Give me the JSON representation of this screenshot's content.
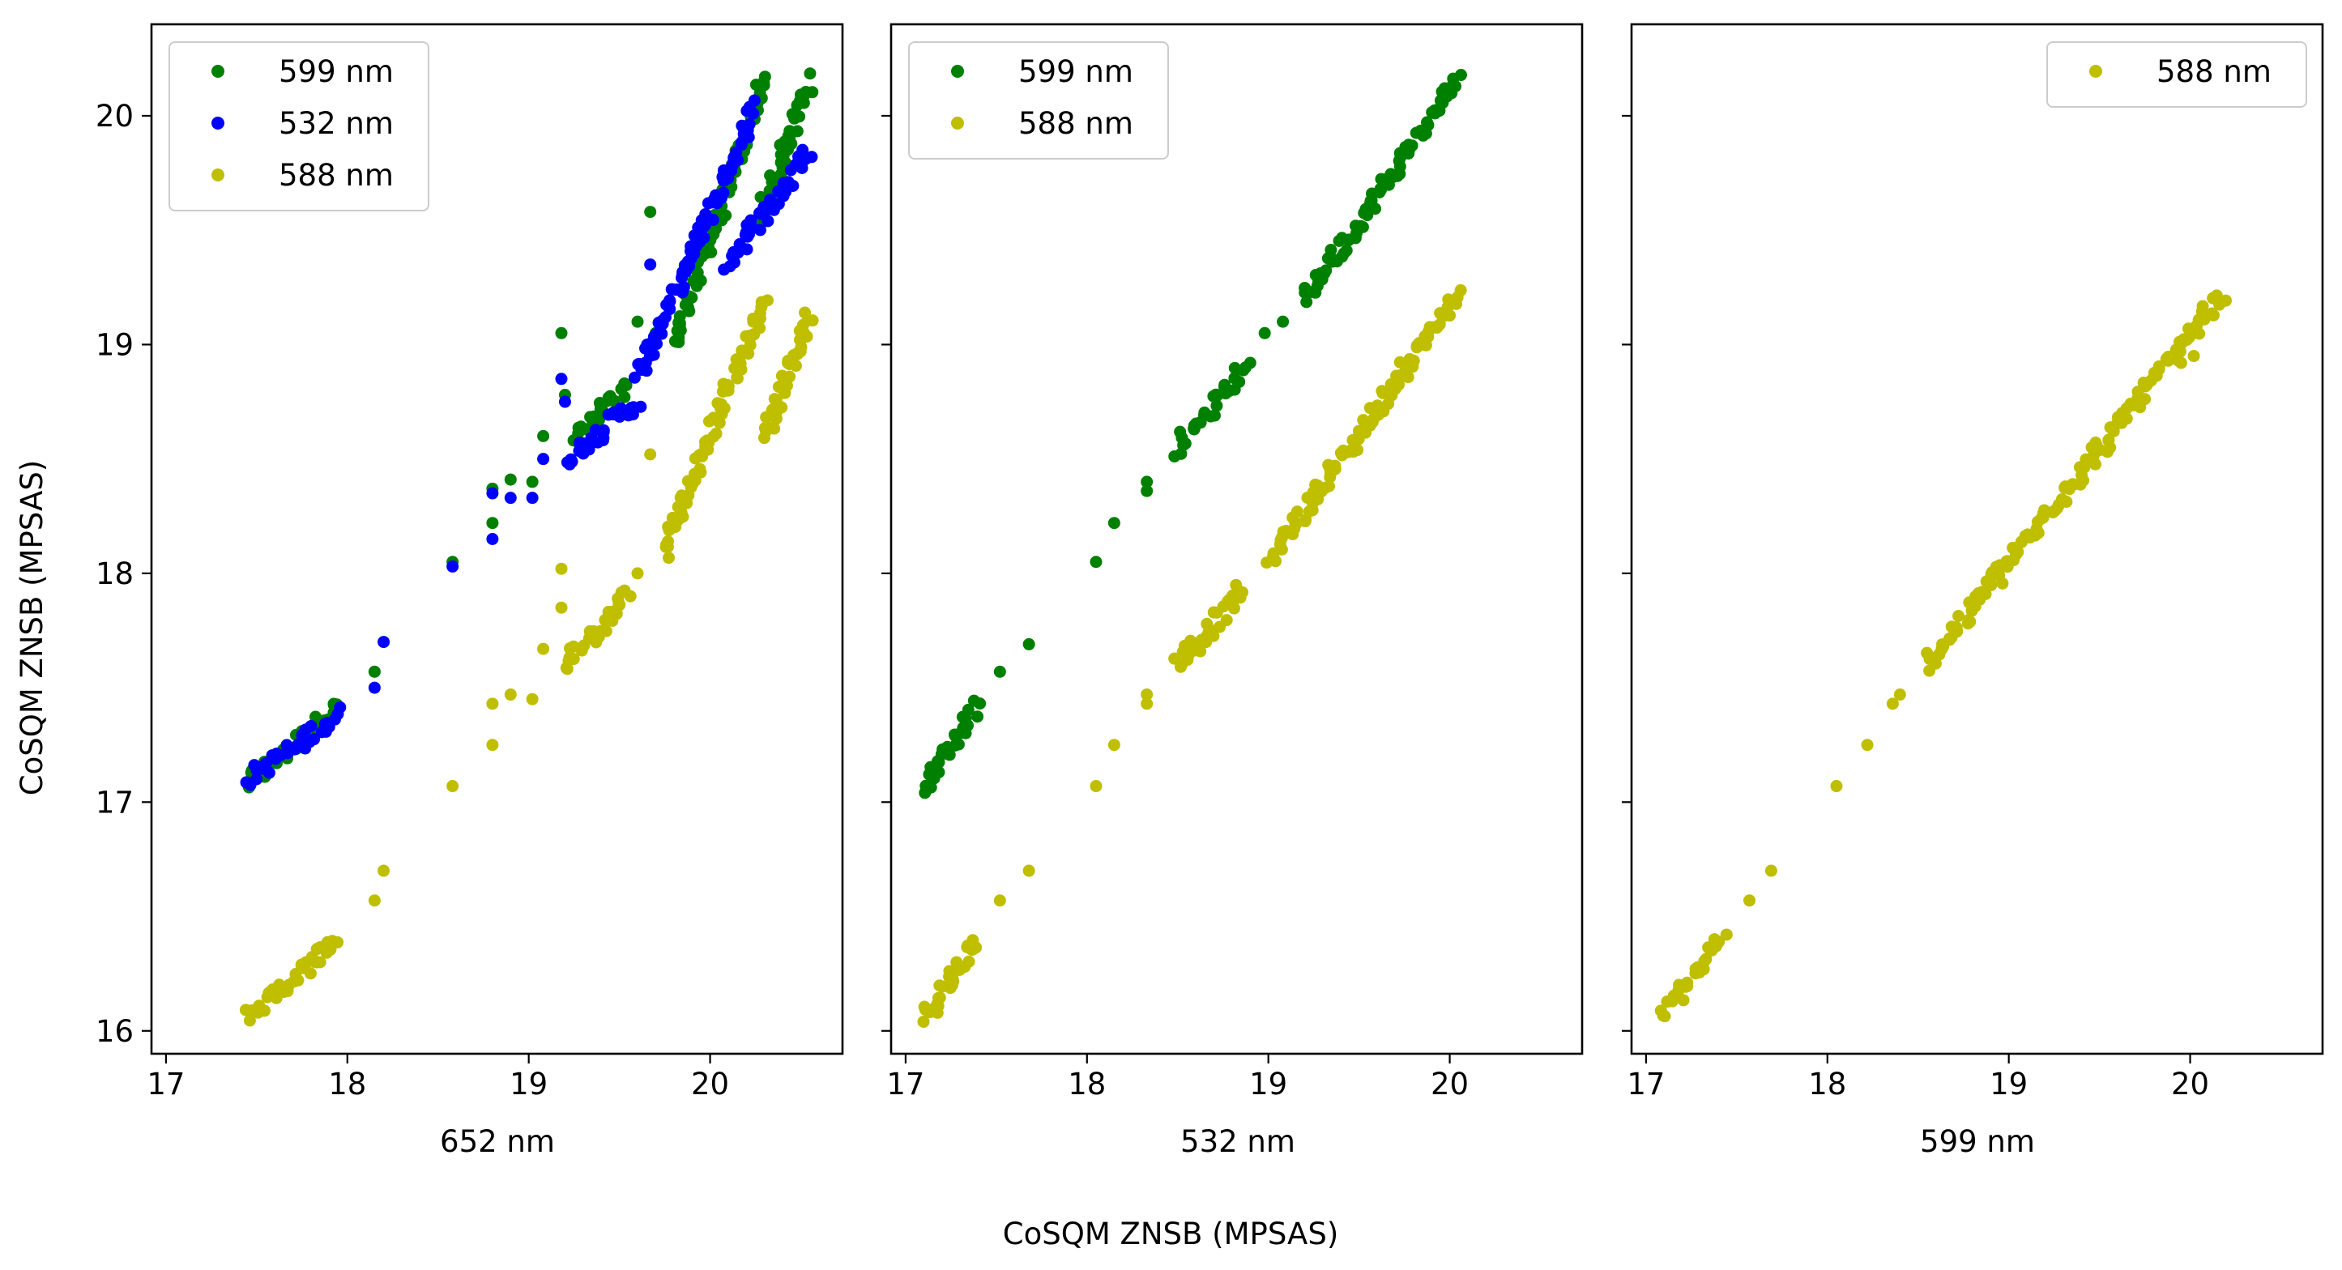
{
  "figure": {
    "supxlabel": "CoSQM ZNSB (MPSAS)",
    "supylabel": "CoSQM ZNSB (MPSAS)"
  },
  "colors": {
    "599 nm": "#008000",
    "532 nm": "#0000ff",
    "588 nm": "#bfbf00"
  },
  "chart_data": [
    {
      "type": "scatter",
      "xlabel": "652 nm",
      "ylabel": "CoSQM ZNSB (MPSAS)",
      "xlim": [
        16.92,
        20.73
      ],
      "ylim": [
        15.9,
        20.4
      ],
      "xticks": [
        17,
        18,
        19,
        20
      ],
      "yticks": [
        16,
        17,
        18,
        19,
        20
      ],
      "legend_position": "upper-left",
      "series": [
        {
          "name": "599 nm",
          "color": "#008000",
          "segments": [
            [
              17.45,
              17.08,
              17.95,
              17.42
            ],
            [
              19.25,
              18.58,
              19.55,
              18.82
            ],
            [
              19.8,
              19.0,
              20.3,
              20.15
            ],
            [
              20.25,
              19.5,
              20.55,
              20.15
            ]
          ],
          "points": [
            [
              18.15,
              17.57
            ],
            [
              18.58,
              18.05
            ],
            [
              18.8,
              18.22
            ],
            [
              18.8,
              18.37
            ],
            [
              18.9,
              18.41
            ],
            [
              19.02,
              18.4
            ],
            [
              19.08,
              18.6
            ],
            [
              19.18,
              19.05
            ],
            [
              19.2,
              18.78
            ],
            [
              19.6,
              19.1
            ],
            [
              19.67,
              19.58
            ],
            [
              19.7,
              19.05
            ]
          ]
        },
        {
          "name": "532 nm",
          "color": "#0000ff",
          "segments": [
            [
              17.45,
              17.1,
              17.95,
              17.38
            ],
            [
              19.2,
              18.5,
              19.6,
              18.75
            ],
            [
              19.6,
              18.85,
              20.25,
              20.05
            ],
            [
              20.1,
              19.35,
              20.55,
              19.85
            ]
          ],
          "points": [
            [
              18.15,
              17.5
            ],
            [
              18.2,
              17.7
            ],
            [
              18.58,
              18.03
            ],
            [
              18.8,
              18.15
            ],
            [
              18.8,
              18.35
            ],
            [
              18.9,
              18.33
            ],
            [
              19.02,
              18.33
            ],
            [
              19.08,
              18.5
            ],
            [
              19.18,
              18.85
            ],
            [
              19.2,
              18.75
            ],
            [
              19.67,
              19.35
            ]
          ]
        },
        {
          "name": "588 nm",
          "color": "#bfbf00",
          "segments": [
            [
              17.45,
              16.06,
              17.95,
              16.4
            ],
            [
              19.2,
              17.6,
              19.55,
              17.9
            ],
            [
              19.75,
              18.1,
              20.3,
              19.2
            ],
            [
              20.3,
              18.6,
              20.55,
              19.12
            ]
          ],
          "points": [
            [
              18.15,
              16.57
            ],
            [
              18.2,
              16.7
            ],
            [
              18.58,
              17.07
            ],
            [
              18.8,
              17.25
            ],
            [
              18.8,
              17.43
            ],
            [
              18.9,
              17.47
            ],
            [
              19.02,
              17.45
            ],
            [
              19.08,
              17.67
            ],
            [
              19.18,
              17.85
            ],
            [
              19.18,
              18.02
            ],
            [
              19.6,
              18.0
            ],
            [
              19.67,
              18.52
            ]
          ]
        }
      ]
    },
    {
      "type": "scatter",
      "xlabel": "532 nm",
      "xlim": [
        16.92,
        20.73
      ],
      "ylim": [
        15.9,
        20.4
      ],
      "xticks": [
        17,
        18,
        19,
        20
      ],
      "yticks": [
        16,
        17,
        18,
        19,
        20
      ],
      "legend_position": "upper-left",
      "series": [
        {
          "name": "599 nm",
          "color": "#008000",
          "segments": [
            [
              17.1,
              17.08,
              17.4,
              17.42
            ],
            [
              18.5,
              18.55,
              18.85,
              18.88
            ],
            [
              19.2,
              19.2,
              20.05,
              20.17
            ]
          ],
          "points": [
            [
              17.52,
              17.57
            ],
            [
              17.68,
              17.69
            ],
            [
              18.05,
              18.05
            ],
            [
              18.15,
              18.22
            ],
            [
              18.33,
              18.4
            ],
            [
              18.33,
              18.36
            ],
            [
              18.9,
              18.92
            ],
            [
              18.98,
              19.05
            ],
            [
              19.08,
              19.1
            ]
          ]
        },
        {
          "name": "588 nm",
          "color": "#bfbf00",
          "segments": [
            [
              17.1,
              16.06,
              17.4,
              16.4
            ],
            [
              18.5,
              17.6,
              18.85,
              17.92
            ],
            [
              19.0,
              18.05,
              20.05,
              19.22
            ]
          ],
          "points": [
            [
              17.52,
              16.57
            ],
            [
              17.68,
              16.7
            ],
            [
              18.05,
              17.07
            ],
            [
              18.15,
              17.25
            ],
            [
              18.33,
              17.43
            ],
            [
              18.33,
              17.47
            ],
            [
              18.55,
              17.67
            ]
          ]
        }
      ]
    },
    {
      "type": "scatter",
      "xlabel": "599 nm",
      "xlim": [
        16.92,
        20.73
      ],
      "ylim": [
        15.9,
        20.4
      ],
      "xticks": [
        17,
        18,
        19,
        20
      ],
      "yticks": [
        16,
        17,
        18,
        19,
        20
      ],
      "legend_position": "upper-right",
      "series": [
        {
          "name": "588 nm",
          "color": "#bfbf00",
          "segments": [
            [
              17.08,
              16.06,
              17.42,
              16.4
            ],
            [
              18.55,
              17.6,
              20.18,
              19.22
            ]
          ],
          "points": [
            [
              17.57,
              16.57
            ],
            [
              17.69,
              16.7
            ],
            [
              18.05,
              17.07
            ],
            [
              18.22,
              17.25
            ],
            [
              18.36,
              17.43
            ],
            [
              18.4,
              17.47
            ],
            [
              19.55,
              18.58
            ],
            [
              19.95,
              18.92
            ],
            [
              20.02,
              18.95
            ]
          ]
        }
      ]
    }
  ]
}
